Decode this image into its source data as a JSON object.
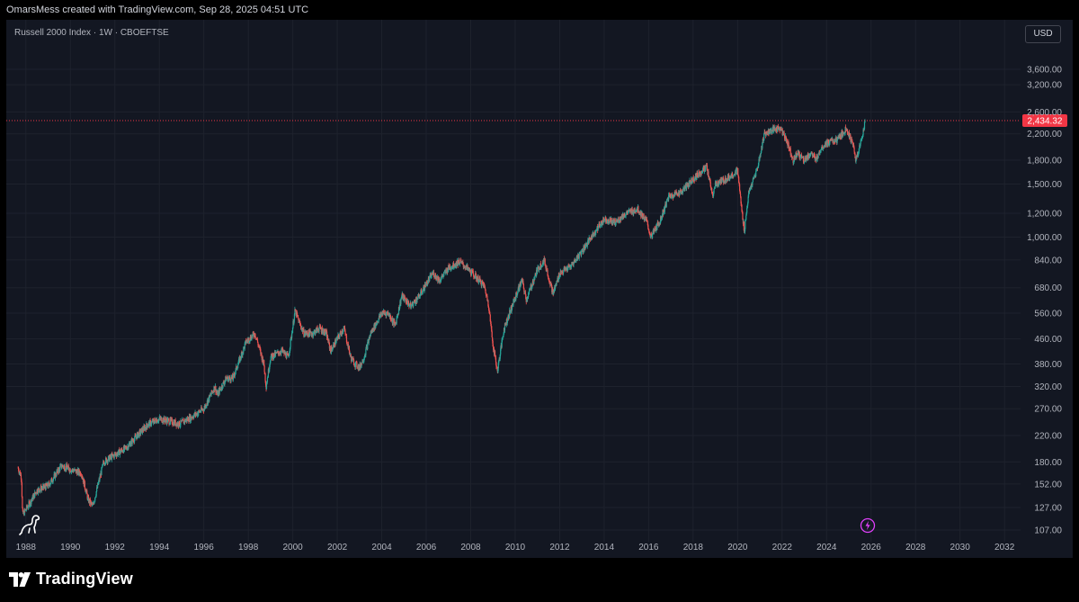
{
  "header": {
    "title": "OmarsMess created with TradingView.com, Sep 28, 2025 04:51 UTC"
  },
  "legend": {
    "text": "Russell 2000 Index · 1W · CBOEFTSE"
  },
  "currency": "USD",
  "footer": {
    "brand": "TradingView"
  },
  "icons": {
    "dino": "dinosaur-icon",
    "flash": "lightning-icon",
    "logo": "tradingview-logo-icon"
  },
  "colors": {
    "background": "#131722",
    "up": "#26a69a",
    "down": "#ef5350",
    "grid": "#1e222d",
    "price_label": "#f23645"
  },
  "chart_data": {
    "type": "candlestick",
    "symbol": "Russell 2000 Index",
    "interval": "1W",
    "exchange": "CBOEFTSE",
    "y_scale": "log",
    "ylim": [
      100,
      4100
    ],
    "xlim": [
      1987.2,
      2032.6
    ],
    "grid": true,
    "price_ticks": [
      "3,600.00",
      "3,200.00",
      "2,600.00",
      "2,200.00",
      "1,800.00",
      "1,500.00",
      "1,200.00",
      "1,000.00",
      "840.00",
      "680.00",
      "560.00",
      "460.00",
      "380.00",
      "320.00",
      "270.00",
      "220.00",
      "180.00",
      "152.00",
      "127.00",
      "107.00"
    ],
    "year_ticks": [
      "1988",
      "1990",
      "1992",
      "1994",
      "1996",
      "1998",
      "2000",
      "2002",
      "2004",
      "2006",
      "2008",
      "2010",
      "2012",
      "2014",
      "2016",
      "2018",
      "2020",
      "2022",
      "2024",
      "2026",
      "2028",
      "2030",
      "2032"
    ],
    "last_price": 2434.32,
    "last_price_label": "2,434.32",
    "approx_weekly_closes": {
      "t": [
        1987.65,
        1987.8,
        1987.85,
        1988.0,
        1988.5,
        1989.0,
        1989.6,
        1990.0,
        1990.5,
        1990.8,
        1991.0,
        1991.5,
        1992.0,
        1992.5,
        1993.0,
        1993.5,
        1994.0,
        1994.5,
        1994.9,
        1995.5,
        1996.0,
        1996.5,
        1996.6,
        1997.0,
        1997.3,
        1997.9,
        1998.3,
        1998.7,
        1998.8,
        1999.0,
        1999.5,
        1999.8,
        2000.1,
        2000.3,
        2000.5,
        2000.9,
        2001.2,
        2001.5,
        2001.7,
        2002.0,
        2002.3,
        2002.6,
        2002.8,
        2003.0,
        2003.2,
        2003.5,
        2004.0,
        2004.3,
        2004.6,
        2004.9,
        2005.3,
        2005.7,
        2006.0,
        2006.3,
        2006.6,
        2007.0,
        2007.5,
        2007.9,
        2008.3,
        2008.6,
        2008.8,
        2009.0,
        2009.2,
        2009.5,
        2010.0,
        2010.3,
        2010.5,
        2011.0,
        2011.3,
        2011.7,
        2012.0,
        2012.5,
        2013.0,
        2013.5,
        2014.0,
        2014.5,
        2015.0,
        2015.5,
        2015.9,
        2016.1,
        2016.5,
        2016.9,
        2017.5,
        2018.0,
        2018.6,
        2018.9,
        2019.0,
        2019.5,
        2020.0,
        2020.2,
        2020.3,
        2020.5,
        2020.9,
        2021.2,
        2021.5,
        2021.9,
        2022.2,
        2022.5,
        2022.7,
        2023.0,
        2023.3,
        2023.5,
        2023.8,
        2024.0,
        2024.5,
        2024.9,
        2025.2,
        2025.3,
        2025.5,
        2025.74
      ],
      "close": [
        172,
        160,
        120,
        125,
        145,
        150,
        175,
        170,
        165,
        135,
        128,
        180,
        190,
        200,
        220,
        240,
        250,
        245,
        240,
        255,
        270,
        320,
        300,
        340,
        340,
        450,
        480,
        380,
        320,
        400,
        420,
        400,
        570,
        520,
        480,
        480,
        500,
        480,
        420,
        460,
        500,
        400,
        380,
        370,
        400,
        480,
        560,
        560,
        510,
        640,
        590,
        640,
        700,
        760,
        720,
        790,
        830,
        780,
        730,
        690,
        600,
        440,
        360,
        500,
        630,
        720,
        620,
        780,
        840,
        650,
        760,
        800,
        900,
        1020,
        1150,
        1120,
        1200,
        1240,
        1130,
        1000,
        1130,
        1360,
        1420,
        1560,
        1710,
        1360,
        1500,
        1560,
        1660,
        1200,
        1050,
        1400,
        1700,
        2200,
        2250,
        2300,
        2100,
        1800,
        1900,
        1800,
        1900,
        1800,
        2000,
        2050,
        2100,
        2300,
        2000,
        1800,
        2000,
        2434.32
      ]
    }
  }
}
